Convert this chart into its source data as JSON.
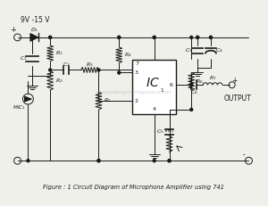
{
  "title": "Figure : 1 Circuit Diagram of Microphone Amplifier using 741",
  "bg_color": "#f0f0eb",
  "line_color": "#1a1a1a",
  "watermark": "www.bestengineeringprojects.com",
  "supply_label": "9V -15 V",
  "output_label": "OUTPUT"
}
